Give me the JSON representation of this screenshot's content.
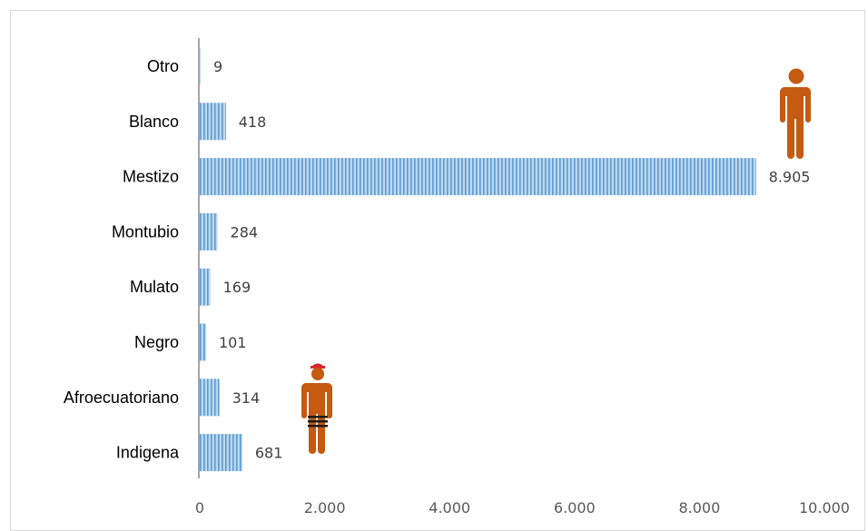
{
  "chart_data": {
    "type": "bar",
    "orientation": "horizontal",
    "categories": [
      "Otro",
      "Blanco",
      "Mestizo",
      "Montubio",
      "Mulato",
      "Negro",
      "Afroecuatoriano",
      "Indigena"
    ],
    "values": [
      9,
      418,
      8905,
      284,
      169,
      101,
      314,
      681
    ],
    "value_labels": [
      "9",
      "418",
      "8.905",
      "284",
      "169",
      "101",
      "314",
      "681"
    ],
    "xlim": [
      0,
      10000
    ],
    "x_ticks": [
      "0",
      "2.000",
      "4.000",
      "6.000",
      "8.000",
      "10.000"
    ],
    "title": "",
    "xlabel": "",
    "ylabel": "",
    "grid": false,
    "legend": "none",
    "bar_color": "#9dc3e6",
    "bar_stripe_color": "#5b9bd5"
  },
  "icons": {
    "person_large": "person-icon",
    "person_indigenous": "indigenous-person-icon",
    "figure_color": "#c55a11",
    "headband_color": "#d9262c",
    "belt_color": "#1a1a1a"
  }
}
